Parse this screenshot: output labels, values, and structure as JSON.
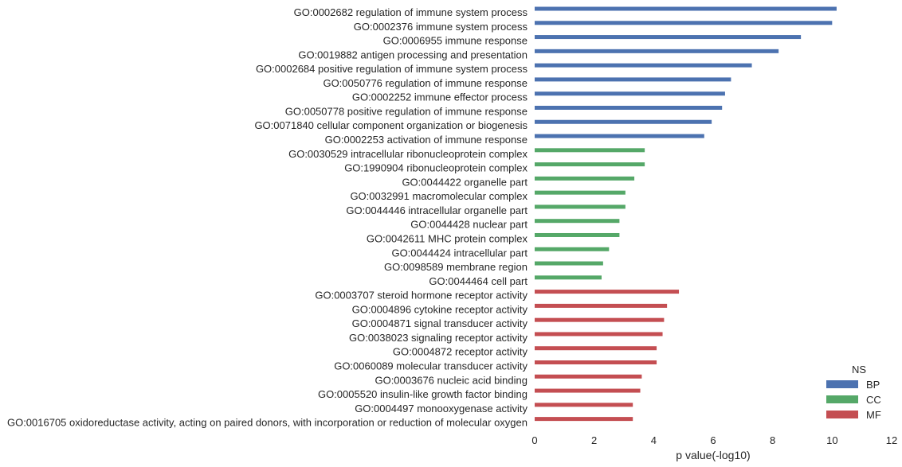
{
  "chart_data": {
    "type": "bar",
    "orientation": "horizontal",
    "xlabel": "p value(-log10)",
    "ylabel": "",
    "xlim": [
      0,
      12
    ],
    "xticks": [
      0,
      2,
      4,
      6,
      8,
      10,
      12
    ],
    "grid": false,
    "legend": {
      "title": "NS",
      "placement": "bottom-right",
      "entries": [
        {
          "name": "BP",
          "color": "#4c72b0"
        },
        {
          "name": "CC",
          "color": "#55a868"
        },
        {
          "name": "MF",
          "color": "#c44e52"
        }
      ]
    },
    "categories": [
      "GO:0002682 regulation of immune system process",
      "GO:0002376 immune system process",
      "GO:0006955 immune response",
      "GO:0019882 antigen processing and presentation",
      "GO:0002684 positive regulation of immune system process",
      "GO:0050776 regulation of immune response",
      "GO:0002252 immune effector process",
      "GO:0050778 positive regulation of immune response",
      "GO:0071840 cellular component organization or biogenesis",
      "GO:0002253 activation of immune response",
      "GO:0030529 intracellular ribonucleoprotein complex",
      "GO:1990904 ribonucleoprotein complex",
      "GO:0044422 organelle part",
      "GO:0032991 macromolecular complex",
      "GO:0044446 intracellular organelle part",
      "GO:0044428 nuclear part",
      "GO:0042611 MHC protein complex",
      "GO:0044424 intracellular part",
      "GO:0098589 membrane region",
      "GO:0044464 cell part",
      "GO:0003707 steroid hormone receptor activity",
      "GO:0004896 cytokine receptor activity",
      "GO:0004871 signal transducer activity",
      "GO:0038023 signaling receptor activity",
      "GO:0004872 receptor activity",
      "GO:0060089 molecular transducer activity",
      "GO:0003676 nucleic acid binding",
      "GO:0005520 insulin-like growth factor binding",
      "GO:0004497 monooxygenase activity",
      "GO:0016705 oxidoreductase activity, acting on paired donors, with incorporation or reduction of molecular oxygen"
    ],
    "series": [
      {
        "name": "BP",
        "color": "#4c72b0",
        "values": [
          10.15,
          10.0,
          8.95,
          8.2,
          7.3,
          6.6,
          6.4,
          6.3,
          5.95,
          5.7,
          null,
          null,
          null,
          null,
          null,
          null,
          null,
          null,
          null,
          null,
          null,
          null,
          null,
          null,
          null,
          null,
          null,
          null,
          null,
          null
        ]
      },
      {
        "name": "CC",
        "color": "#55a868",
        "values": [
          null,
          null,
          null,
          null,
          null,
          null,
          null,
          null,
          null,
          null,
          3.7,
          3.7,
          3.35,
          3.05,
          3.05,
          2.85,
          2.85,
          2.5,
          2.3,
          2.25,
          null,
          null,
          null,
          null,
          null,
          null,
          null,
          null,
          null,
          null
        ]
      },
      {
        "name": "MF",
        "color": "#c44e52",
        "values": [
          null,
          null,
          null,
          null,
          null,
          null,
          null,
          null,
          null,
          null,
          null,
          null,
          null,
          null,
          null,
          null,
          null,
          null,
          null,
          null,
          4.85,
          4.45,
          4.35,
          4.3,
          4.1,
          4.1,
          3.6,
          3.55,
          3.3,
          3.3
        ]
      }
    ]
  }
}
